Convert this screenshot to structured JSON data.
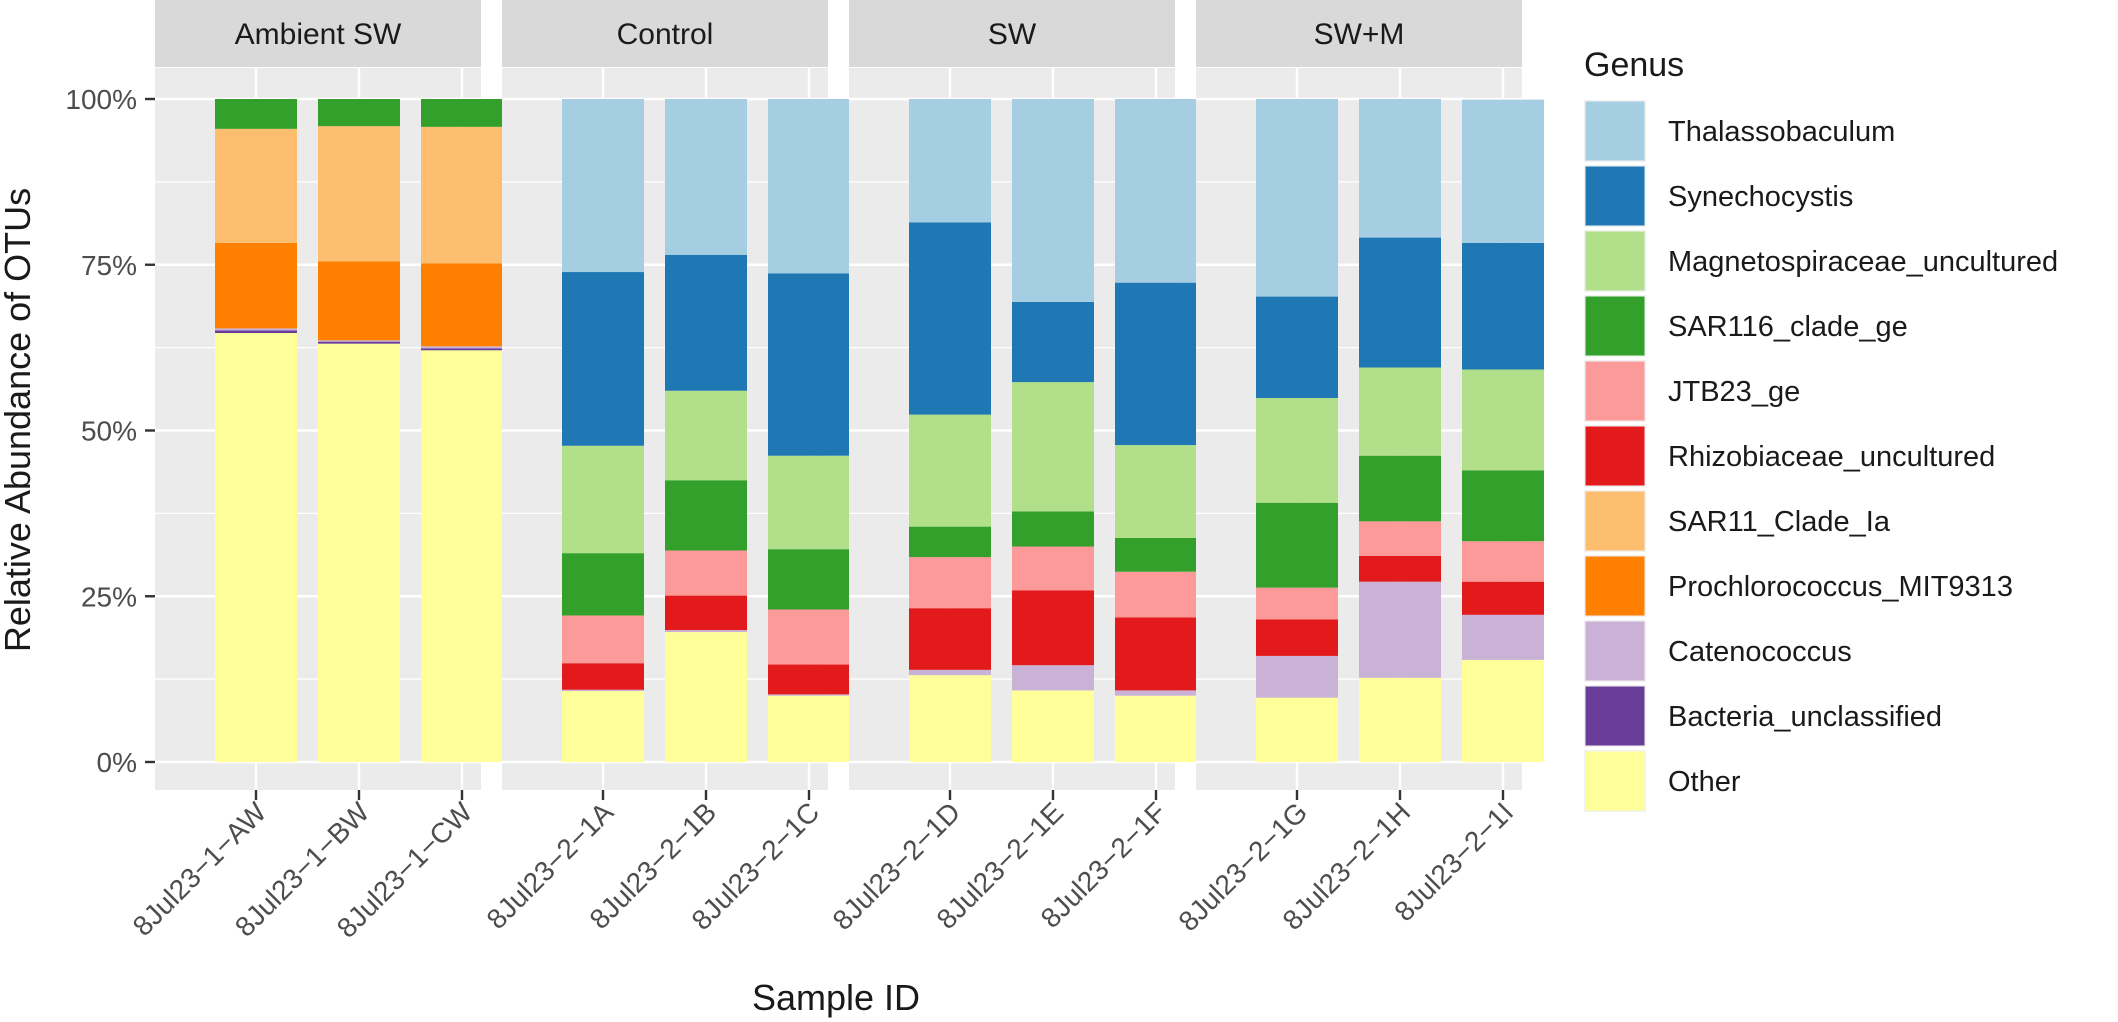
{
  "chart_data": {
    "type": "bar",
    "stacked": true,
    "percent": true,
    "xlabel": "Sample ID",
    "ylabel": "Relative Abundance of OTUs",
    "ylim": [
      0,
      1
    ],
    "yticks": [
      0,
      0.25,
      0.5,
      0.75,
      1.0
    ],
    "ytick_labels": [
      "0%",
      "25%",
      "50%",
      "75%",
      "100%"
    ],
    "grid": true,
    "legend": {
      "title": "Genus",
      "position": "right"
    },
    "facets": [
      {
        "label": "Ambient SW",
        "samples": [
          "8Jul23−1−AW",
          "8Jul23−1−BW",
          "8Jul23−1−CW"
        ]
      },
      {
        "label": "Control",
        "samples": [
          "8Jul23−2−1A",
          "8Jul23−2−1B",
          "8Jul23−2−1C"
        ]
      },
      {
        "label": "SW",
        "samples": [
          "8Jul23−2−1D",
          "8Jul23−2−1E",
          "8Jul23−2−1F"
        ]
      },
      {
        "label": "SW+M",
        "samples": [
          "8Jul23−2−1G",
          "8Jul23−2−1H",
          "8Jul23−2−1I"
        ]
      }
    ],
    "series": [
      {
        "name": "Thalassobaculum",
        "color": "#A6CEE3",
        "values": [
          0,
          0,
          0,
          0.261,
          0.235,
          0.263,
          0.186,
          0.306,
          0.277,
          0.298,
          0.209,
          0.216
        ]
      },
      {
        "name": "Synechocystis",
        "color": "#1F78B4",
        "values": [
          0,
          0,
          0,
          0.262,
          0.205,
          0.275,
          0.29,
          0.121,
          0.245,
          0.153,
          0.196,
          0.191
        ]
      },
      {
        "name": "Magnetospiraceae_uncultured",
        "color": "#B2DF8A",
        "values": [
          0,
          0,
          0,
          0.162,
          0.135,
          0.141,
          0.169,
          0.195,
          0.14,
          0.158,
          0.133,
          0.152
        ]
      },
      {
        "name": "SAR116_clade_ge",
        "color": "#33A02C",
        "values": [
          0.045,
          0.041,
          0.042,
          0.094,
          0.106,
          0.091,
          0.046,
          0.053,
          0.051,
          0.128,
          0.099,
          0.107
        ]
      },
      {
        "name": "JTB23_ge",
        "color": "#FB9A99",
        "values": [
          0,
          0,
          0,
          0.072,
          0.068,
          0.083,
          0.077,
          0.066,
          0.069,
          0.048,
          0.052,
          0.061
        ]
      },
      {
        "name": "Rhizobiaceae_uncultured",
        "color": "#E31A1C",
        "values": [
          0,
          0,
          0,
          0.04,
          0.052,
          0.045,
          0.093,
          0.113,
          0.11,
          0.055,
          0.039,
          0.05
        ]
      },
      {
        "name": "SAR11_Clade_Ia",
        "color": "#FDBF6F",
        "values": [
          0.172,
          0.204,
          0.206,
          0,
          0,
          0,
          0,
          0,
          0,
          0,
          0,
          0
        ]
      },
      {
        "name": "Prochlorococcus_MIT9313",
        "color": "#FF7F00",
        "values": [
          0.129,
          0.119,
          0.125,
          0,
          0,
          0,
          0,
          0,
          0,
          0,
          0,
          0
        ]
      },
      {
        "name": "Catenococcus",
        "color": "#CAB2D6",
        "values": [
          0.003,
          0.002,
          0.003,
          0.002,
          0.003,
          0.002,
          0.008,
          0.038,
          0.008,
          0.063,
          0.145,
          0.068
        ]
      },
      {
        "name": "Bacteria_unclassified",
        "color": "#6A3D9A",
        "values": [
          0.004,
          0.003,
          0.003,
          0,
          0,
          0,
          0,
          0,
          0,
          0,
          0,
          0
        ]
      },
      {
        "name": "Other",
        "color": "#FFFF99",
        "values": [
          0.647,
          0.631,
          0.621,
          0.107,
          0.196,
          0.1,
          0.131,
          0.108,
          0.1,
          0.097,
          0.127,
          0.154
        ]
      }
    ]
  },
  "colors": {
    "panel_background": "#EBEBEB",
    "grid": "#FFFFFF",
    "strip_background": "#D9D9D9"
  }
}
